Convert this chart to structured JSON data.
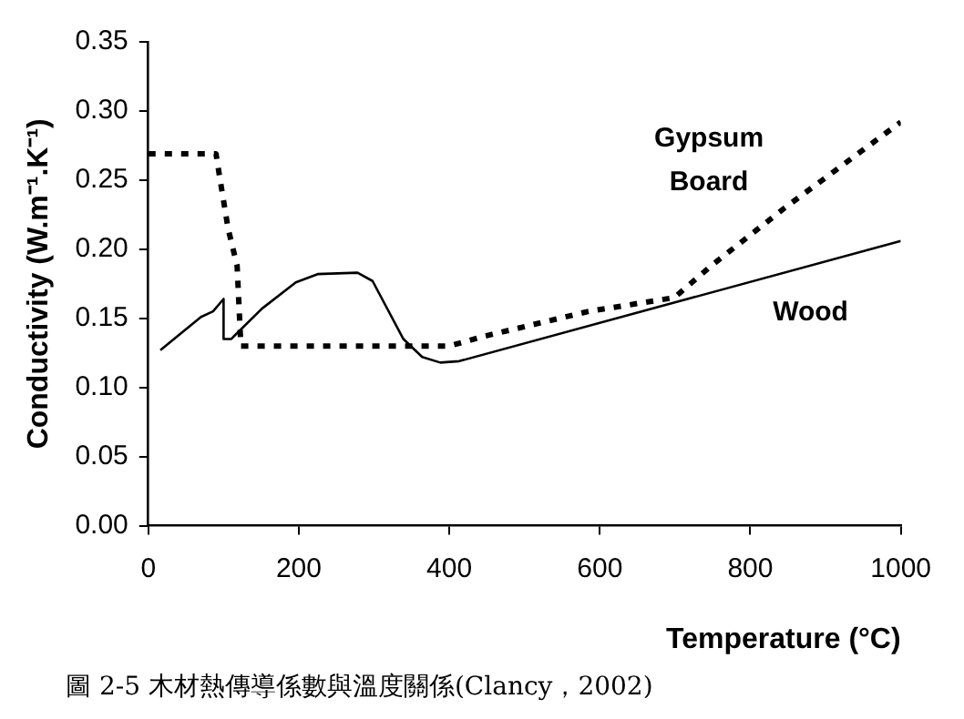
{
  "chart_data": {
    "type": "line",
    "xlabel": "Temperature (°C)",
    "ylabel": "Conductivity (W.m⁻¹.K⁻¹)",
    "xlim": [
      0,
      1000
    ],
    "xticks": [
      0,
      200,
      400,
      600,
      800,
      1000
    ],
    "ylim": [
      0,
      0.35
    ],
    "yticks": [
      {
        "value": 0,
        "label": "0.00"
      },
      {
        "value": 0.05,
        "label": "0.05"
      },
      {
        "value": 0.1,
        "label": "0.10"
      },
      {
        "value": 0.15,
        "label": "0.15"
      },
      {
        "value": 0.2,
        "label": "0.20"
      },
      {
        "value": 0.25,
        "label": "0.25"
      },
      {
        "value": 0.3,
        "label": "0.30"
      },
      {
        "value": 0.35,
        "label": "0.35"
      }
    ],
    "grid": false,
    "legend": false,
    "marker": "none",
    "annotations": [
      "圖 2-5 木材熱傳導係數與溫度關係(Clancy，2002)"
    ],
    "series": [
      {
        "name": "Gypsum Board",
        "color": "#000000",
        "line_style": "dotted",
        "x": [
          0,
          90,
          94,
          106,
          118,
          123,
          400,
          446,
          585,
          699,
          748,
          846,
          1000
        ],
        "values": [
          0.269,
          0.269,
          0.255,
          0.215,
          0.188,
          0.13,
          0.13,
          0.137,
          0.155,
          0.165,
          0.188,
          0.23,
          0.292
        ]
      },
      {
        "name": "Wood",
        "color": "#000000",
        "line_style": "solid",
        "x": [
          16,
          70,
          86,
          100,
          100,
          110,
          151,
          196,
          225,
          278,
          298,
          339,
          364,
          388,
          413,
          1000
        ],
        "values": [
          0.127,
          0.151,
          0.155,
          0.164,
          0.135,
          0.135,
          0.157,
          0.176,
          0.182,
          0.183,
          0.177,
          0.135,
          0.122,
          0.118,
          0.119,
          0.206
        ]
      }
    ]
  }
}
